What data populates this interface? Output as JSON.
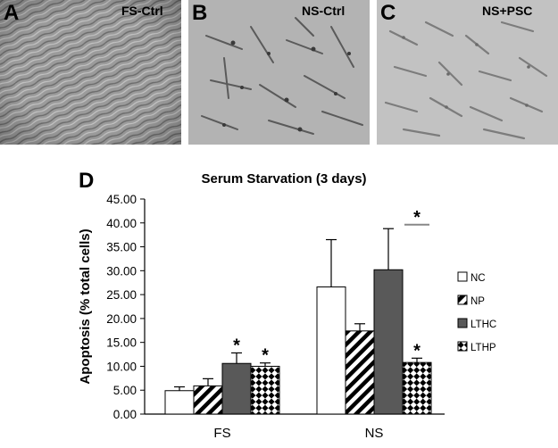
{
  "panels": [
    {
      "letter": "A",
      "caption": "FS-Ctrl"
    },
    {
      "letter": "B",
      "caption": "NS-Ctrl"
    },
    {
      "letter": "C",
      "caption": "NS+PSC"
    }
  ],
  "chart_panel_letter": "D",
  "chart_data": {
    "type": "bar",
    "title": "Serum Starvation (3 days)",
    "xlabel": "",
    "ylabel": "Apoptosis (% total cells)",
    "ylim": [
      0,
      45
    ],
    "yticks": [
      "0.00",
      "5.00",
      "10.00",
      "15.00",
      "20.00",
      "25.00",
      "30.00",
      "35.00",
      "40.00",
      "45.00"
    ],
    "categories": [
      "FS",
      "NS"
    ],
    "legend_position": "right",
    "series": [
      {
        "name": "NC",
        "fill": "white",
        "values": [
          4.9,
          26.6
        ],
        "errors": [
          0.8,
          9.9
        ]
      },
      {
        "name": "NP",
        "fill": "diagonal-stripes",
        "values": [
          5.9,
          17.4
        ],
        "errors": [
          1.5,
          1.5
        ]
      },
      {
        "name": "LTHC",
        "fill": "dark-gray",
        "values": [
          10.6,
          30.2
        ],
        "errors": [
          2.2,
          8.6
        ]
      },
      {
        "name": "LTHP",
        "fill": "diamond-checker",
        "values": [
          10.0,
          10.8
        ],
        "errors": [
          0.7,
          0.9
        ]
      }
    ],
    "annotations": [
      {
        "text": "*",
        "category": "FS",
        "series": "LTHC"
      },
      {
        "text": "*",
        "category": "FS",
        "series": "LTHP"
      },
      {
        "text": "*",
        "category": "NS",
        "series": "LTHP"
      },
      {
        "text": "*",
        "category": "NS",
        "series": "LTHP",
        "bracket": true,
        "y": 40
      }
    ]
  }
}
